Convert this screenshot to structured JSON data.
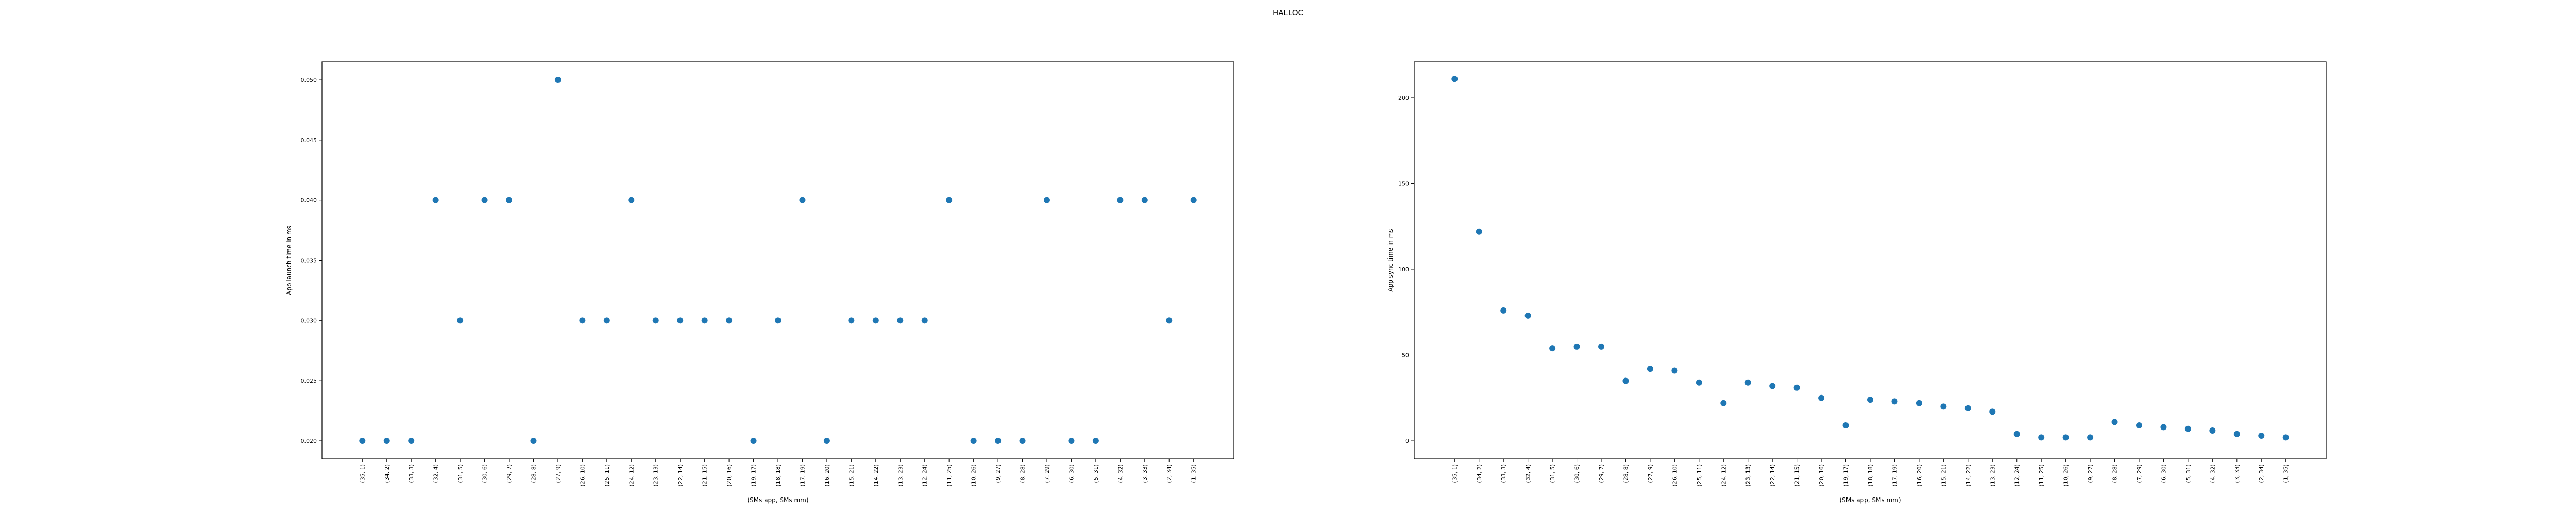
{
  "figure": {
    "suptitle": "HALLOC"
  },
  "chart_data": [
    {
      "type": "scatter",
      "xlabel": "(SMs app, SMs mm)",
      "ylabel": "App launch time in ms",
      "ylim": [
        0.0185,
        0.0515
      ],
      "yticks": [
        0.02,
        0.025,
        0.03,
        0.035,
        0.04,
        0.045,
        0.05
      ],
      "ytick_labels": [
        "0.020",
        "0.025",
        "0.030",
        "0.035",
        "0.040",
        "0.045",
        "0.050"
      ],
      "marker_color": "#1f77b4",
      "categories": [
        "(35, 1)",
        "(34, 2)",
        "(33, 3)",
        "(32, 4)",
        "(31, 5)",
        "(30, 6)",
        "(29, 7)",
        "(28, 8)",
        "(27, 9)",
        "(26, 10)",
        "(25, 11)",
        "(24, 12)",
        "(23, 13)",
        "(22, 14)",
        "(21, 15)",
        "(20, 16)",
        "(19, 17)",
        "(18, 18)",
        "(17, 19)",
        "(16, 20)",
        "(15, 21)",
        "(14, 22)",
        "(13, 23)",
        "(12, 24)",
        "(11, 25)",
        "(10, 26)",
        "(9, 27)",
        "(8, 28)",
        "(7, 29)",
        "(6, 30)",
        "(5, 31)",
        "(4, 32)",
        "(3, 33)",
        "(2, 34)",
        "(1, 35)"
      ],
      "values": [
        0.02,
        0.02,
        0.02,
        0.04,
        0.03,
        0.04,
        0.04,
        0.02,
        0.05,
        0.03,
        0.03,
        0.04,
        0.03,
        0.03,
        0.03,
        0.03,
        0.02,
        0.03,
        0.04,
        0.02,
        0.03,
        0.03,
        0.03,
        0.03,
        0.04,
        0.02,
        0.02,
        0.02,
        0.04,
        0.02,
        0.02,
        0.04,
        0.04,
        0.03,
        0.04
      ]
    },
    {
      "type": "scatter",
      "xlabel": "(SMs app, SMs mm)",
      "ylabel": "App sync time in ms",
      "ylim": [
        -10.5,
        221
      ],
      "yticks": [
        0,
        50,
        100,
        150,
        200
      ],
      "ytick_labels": [
        "0",
        "50",
        "100",
        "150",
        "200"
      ],
      "marker_color": "#1f77b4",
      "categories": [
        "(35, 1)",
        "(34, 2)",
        "(33, 3)",
        "(32, 4)",
        "(31, 5)",
        "(30, 6)",
        "(29, 7)",
        "(28, 8)",
        "(27, 9)",
        "(26, 10)",
        "(25, 11)",
        "(24, 12)",
        "(23, 13)",
        "(22, 14)",
        "(21, 15)",
        "(20, 16)",
        "(19, 17)",
        "(18, 18)",
        "(17, 19)",
        "(16, 20)",
        "(15, 21)",
        "(14, 22)",
        "(13, 23)",
        "(12, 24)",
        "(11, 25)",
        "(10, 26)",
        "(9, 27)",
        "(8, 28)",
        "(7, 29)",
        "(6, 30)",
        "(5, 31)",
        "(4, 32)",
        "(3, 33)",
        "(2, 34)",
        "(1, 35)"
      ],
      "values": [
        211,
        122,
        76,
        73,
        54,
        55,
        55,
        35,
        42,
        41,
        34,
        22,
        34,
        32,
        31,
        25,
        9,
        24,
        23,
        22,
        20,
        19,
        17,
        4,
        2,
        2,
        2,
        11,
        9,
        8,
        7,
        6,
        4,
        3,
        2
      ]
    }
  ]
}
